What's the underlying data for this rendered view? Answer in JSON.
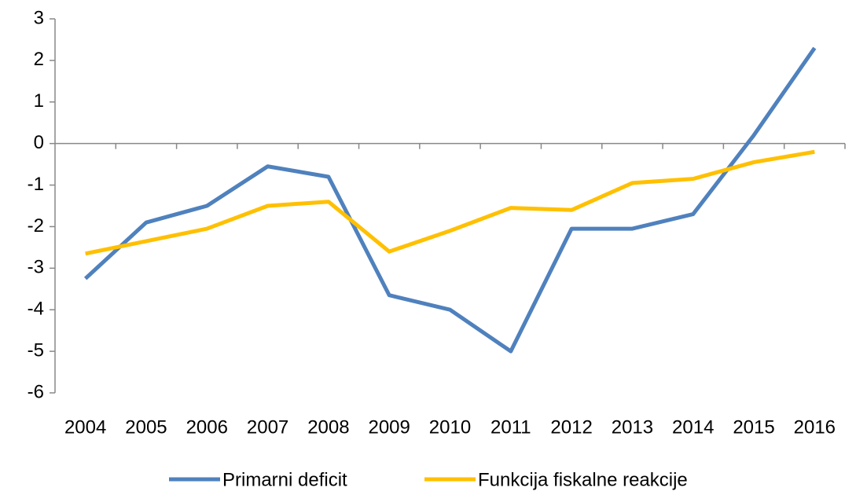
{
  "chart_data": {
    "type": "line",
    "categories": [
      "2004",
      "2005",
      "2006",
      "2007",
      "2008",
      "2009",
      "2010",
      "2011",
      "2012",
      "2013",
      "2014",
      "2015",
      "2016"
    ],
    "series": [
      {
        "name": "Primarni deficit",
        "color": "#4f81bd",
        "values": [
          -3.25,
          -1.9,
          -1.5,
          -0.55,
          -0.8,
          -3.65,
          -4.0,
          -5.0,
          -2.05,
          -2.05,
          -1.7,
          0.2,
          2.3
        ]
      },
      {
        "name": "Funkcija fiskalne reakcije",
        "color": "#ffc000",
        "values": [
          -2.65,
          -2.35,
          -2.05,
          -1.5,
          -1.4,
          -2.6,
          -2.1,
          -1.55,
          -1.6,
          -0.95,
          -0.85,
          -0.45,
          -0.2
        ]
      }
    ],
    "ylim": [
      -6,
      3
    ],
    "yticks": [
      -6,
      -5,
      -4,
      -3,
      -2,
      -1,
      0,
      1,
      2,
      3
    ],
    "grid": false,
    "legend": "bottom"
  }
}
